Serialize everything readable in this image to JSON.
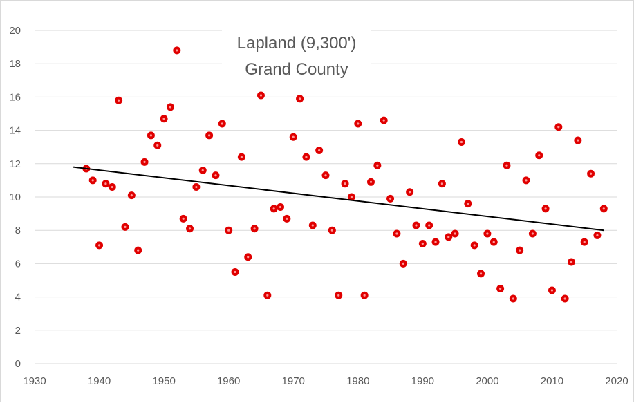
{
  "chart_data": {
    "type": "scatter",
    "title_lines": [
      "Lapland (9,300')",
      "Grand County"
    ],
    "xlabel": "",
    "ylabel": "",
    "xlim": [
      1930,
      2020
    ],
    "ylim": [
      0,
      20
    ],
    "x_ticks": [
      1930,
      1940,
      1950,
      1960,
      1970,
      1980,
      1990,
      2000,
      2010,
      2020
    ],
    "y_ticks": [
      0,
      2,
      4,
      6,
      8,
      10,
      12,
      14,
      16,
      18,
      20
    ],
    "grid": "horizontal",
    "legend": "none",
    "colors": {
      "points": "#e00000",
      "point_center": "#ff9999",
      "trendline": "#000000",
      "grid": "#d9d9d9",
      "ticks": "#595959"
    },
    "points": [
      [
        1938,
        11.7
      ],
      [
        1939,
        11.0
      ],
      [
        1940,
        7.1
      ],
      [
        1941,
        10.8
      ],
      [
        1942,
        10.6
      ],
      [
        1943,
        15.8
      ],
      [
        1944,
        8.2
      ],
      [
        1945,
        10.1
      ],
      [
        1946,
        6.8
      ],
      [
        1947,
        12.1
      ],
      [
        1948,
        13.7
      ],
      [
        1949,
        13.1
      ],
      [
        1950,
        14.7
      ],
      [
        1951,
        15.4
      ],
      [
        1952,
        18.8
      ],
      [
        1953,
        8.7
      ],
      [
        1954,
        8.1
      ],
      [
        1955,
        10.6
      ],
      [
        1956,
        11.6
      ],
      [
        1957,
        13.7
      ],
      [
        1958,
        11.3
      ],
      [
        1959,
        14.4
      ],
      [
        1960,
        8.0
      ],
      [
        1961,
        5.5
      ],
      [
        1962,
        12.4
      ],
      [
        1963,
        6.4
      ],
      [
        1964,
        8.1
      ],
      [
        1965,
        16.1
      ],
      [
        1966,
        4.1
      ],
      [
        1967,
        9.3
      ],
      [
        1968,
        9.4
      ],
      [
        1969,
        8.7
      ],
      [
        1970,
        13.6
      ],
      [
        1971,
        15.9
      ],
      [
        1972,
        12.4
      ],
      [
        1973,
        8.3
      ],
      [
        1974,
        12.8
      ],
      [
        1975,
        11.3
      ],
      [
        1976,
        8.0
      ],
      [
        1977,
        4.1
      ],
      [
        1978,
        10.8
      ],
      [
        1979,
        10.0
      ],
      [
        1980,
        14.4
      ],
      [
        1981,
        4.1
      ],
      [
        1982,
        10.9
      ],
      [
        1983,
        11.9
      ],
      [
        1984,
        14.6
      ],
      [
        1985,
        9.9
      ],
      [
        1986,
        7.8
      ],
      [
        1987,
        6.0
      ],
      [
        1988,
        10.3
      ],
      [
        1989,
        8.3
      ],
      [
        1990,
        7.2
      ],
      [
        1991,
        8.3
      ],
      [
        1992,
        7.3
      ],
      [
        1993,
        10.8
      ],
      [
        1994,
        7.6
      ],
      [
        1995,
        7.8
      ],
      [
        1996,
        13.3
      ],
      [
        1997,
        9.6
      ],
      [
        1998,
        7.1
      ],
      [
        1999,
        5.4
      ],
      [
        2000,
        7.8
      ],
      [
        2001,
        7.3
      ],
      [
        2002,
        4.5
      ],
      [
        2003,
        11.9
      ],
      [
        2004,
        3.9
      ],
      [
        2005,
        6.8
      ],
      [
        2006,
        11.0
      ],
      [
        2007,
        7.8
      ],
      [
        2008,
        12.5
      ],
      [
        2009,
        9.3
      ],
      [
        2010,
        4.4
      ],
      [
        2011,
        14.2
      ],
      [
        2012,
        3.9
      ],
      [
        2013,
        6.1
      ],
      [
        2014,
        13.4
      ],
      [
        2015,
        7.3
      ],
      [
        2016,
        11.4
      ],
      [
        2017,
        7.7
      ],
      [
        2018,
        9.3
      ]
    ],
    "trendline": {
      "x": [
        1936,
        2018
      ],
      "y": [
        11.8,
        8.0
      ]
    }
  }
}
